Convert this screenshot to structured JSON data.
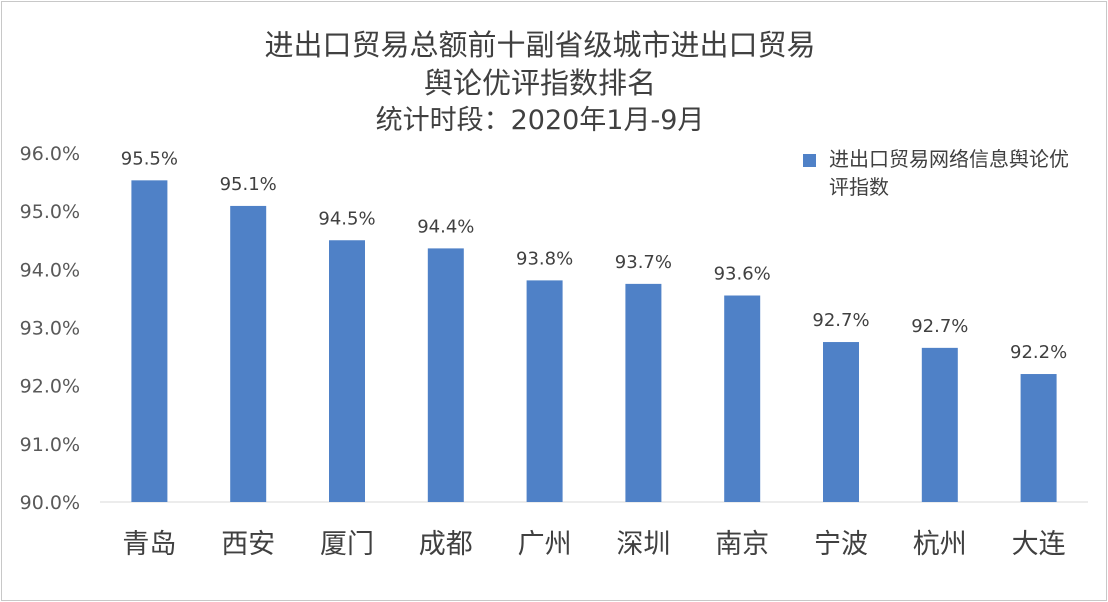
{
  "chart_data": {
    "type": "bar",
    "title": "进出口贸易总额前十副省级城市进出口贸易",
    "title_line2": "舆论优评指数排名",
    "subtitle": "统计时段：2020年1月-9月",
    "categories": [
      "青岛",
      "西安",
      "厦门",
      "成都",
      "广州",
      "深圳",
      "南京",
      "宁波",
      "杭州",
      "大连"
    ],
    "series": [
      {
        "name": "进出口贸易网络信息舆论优评指数",
        "values": [
          95.53,
          95.09,
          94.5,
          94.36,
          93.81,
          93.75,
          93.55,
          92.75,
          92.65,
          92.2
        ],
        "data_labels": [
          "95.5%",
          "95.1%",
          "94.5%",
          "94.4%",
          "93.8%",
          "93.7%",
          "93.6%",
          "92.7%",
          "92.7%",
          "92.2%"
        ],
        "color": "#4f81c7"
      }
    ],
    "ylim": [
      90,
      96
    ],
    "yticks": [
      "90.0%",
      "91.0%",
      "92.0%",
      "93.0%",
      "94.0%",
      "95.0%",
      "96.0%"
    ],
    "xlabel": "",
    "ylabel": "",
    "grid": false,
    "legend_position": "top-right"
  }
}
